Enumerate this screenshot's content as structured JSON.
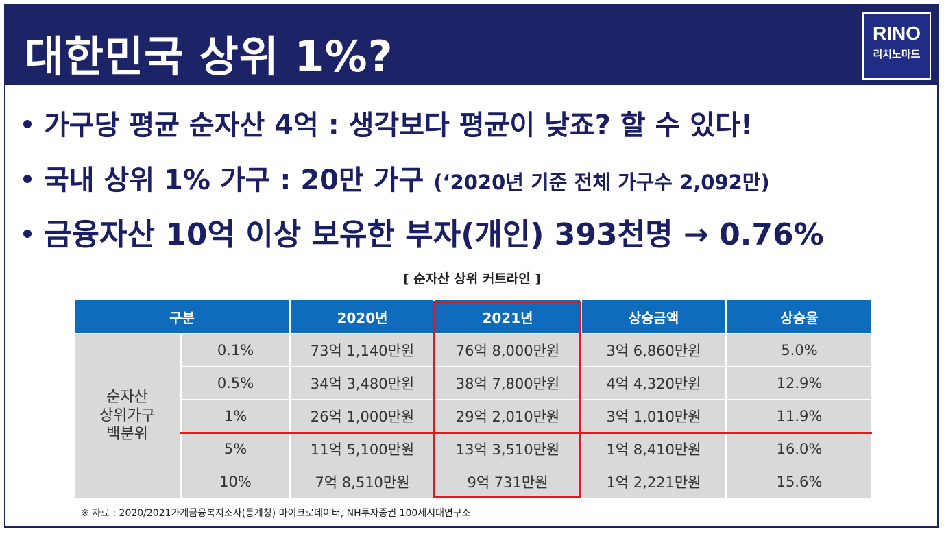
{
  "slide": {
    "title": "대한민국 상위 1%?",
    "logo": {
      "brand": "RINO",
      "subtitle": "리치노마드"
    }
  },
  "bullets": {
    "b1": "가구당 평균 순자산 4억 : 생각보다 평균이 낮죠? 할 수 있다!",
    "b2_main": "국내 상위 1% 가구 : 20만 가구 ",
    "b2_note": "(‘2020년 기준 전체 가구수 2,092만)",
    "b3": "금융자산 10억 이상 보유한 부자(개인) 393천명 → 0.76%"
  },
  "table": {
    "caption": "[ 순자산 상위 커트라인 ]",
    "headers": [
      "구분",
      "2020년",
      "2021년",
      "상승금액",
      "상승율"
    ],
    "group_label_lines": [
      "순자산",
      "상위가구",
      "백분위"
    ],
    "rows": [
      {
        "pct": "0.1%",
        "y2020": "73억 1,140만원",
        "y2021": "76억 8,000만원",
        "rise": "3억 6,860만원",
        "rate": "5.0%"
      },
      {
        "pct": "0.5%",
        "y2020": "34억 3,480만원",
        "y2021": "38억 7,800만원",
        "rise": "4억 4,320만원",
        "rate": "12.9%"
      },
      {
        "pct": "1%",
        "y2020": "26억 1,000만원",
        "y2021": "29억 2,010만원",
        "rise": "3억 1,010만원",
        "rate": "11.9%"
      },
      {
        "pct": "5%",
        "y2020": "11억 5,100만원",
        "y2021": "13억 3,510만원",
        "rise": "1억 8,410만원",
        "rate": "16.0%"
      },
      {
        "pct": "10%",
        "y2020": "7억 8,510만원",
        "y2021": "9억 731만원",
        "rise": "1억 2,221만원",
        "rate": "15.6%"
      }
    ],
    "source": "※ 자료 : 2020/2021가계금융복지조사(통계청) 마이크로데이터, NH투자증권 100세시대연구소"
  },
  "colors": {
    "navy": "#1c2467",
    "header_blue": "#0f6cbd",
    "highlight_red": "#e1191b",
    "cell_gray": "#d9d9d9"
  }
}
